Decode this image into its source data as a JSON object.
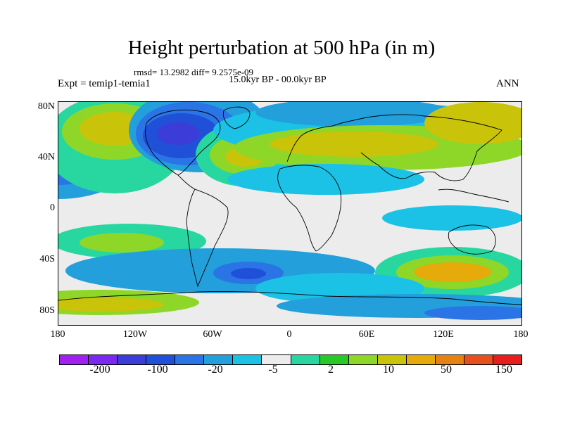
{
  "title": "Height perturbation at 500 hPa (in m)",
  "stats": "rmsd= 13.2982 diff= 9.2575e-09",
  "experiment": "Expt = temip1-temia1",
  "period": "15.0kyr BP - 00.0kyr BP",
  "season": "ANN",
  "lat_ticks": [
    "80N",
    "40N",
    "0",
    "40S",
    "80S"
  ],
  "lon_ticks": [
    "180",
    "120W",
    "60W",
    "0",
    "60E",
    "120E",
    "180"
  ],
  "colorbar": {
    "colors": [
      "#a020f0",
      "#7b28f0",
      "#3c3cd8",
      "#2050d8",
      "#2a74e6",
      "#23a0dc",
      "#1bc2e6",
      "#ececec",
      "#28d7a0",
      "#28c828",
      "#8ed728",
      "#c9c30a",
      "#e6aa0a",
      "#e68214",
      "#e6501e",
      "#e61e1e"
    ],
    "labels": [
      "-200",
      "-100",
      "-20",
      "-5",
      "2",
      "10",
      "50",
      "150"
    ]
  }
}
